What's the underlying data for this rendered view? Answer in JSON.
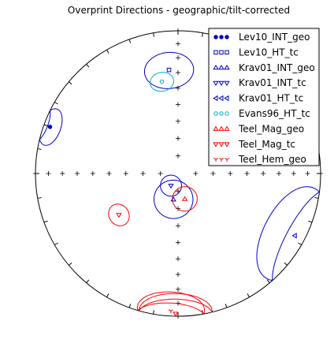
{
  "chart_data": {
    "type": "scatter",
    "projection": "equal-area stereonet",
    "title": "Overprint Directions - geographic/tilt-corrected",
    "legend_position": "top-right",
    "grid": false,
    "series": [
      {
        "name": "Lev10_INT_geo",
        "marker": "circle",
        "color": "#0000cc",
        "filled": true,
        "points": [
          {
            "dec": 290,
            "inc": 5,
            "a95": 8
          }
        ]
      },
      {
        "name": "Lev10_HT_tc",
        "marker": "square",
        "color": "#0000cc",
        "filled": false,
        "points": [
          {
            "dec": 355,
            "inc": 28,
            "a95": 12
          }
        ]
      },
      {
        "name": "Krav01_INT_geo",
        "marker": "triangle-up",
        "color": "#0000cc",
        "filled": false,
        "points": [
          {
            "dec": 190,
            "inc": 75,
            "a95": 11
          }
        ]
      },
      {
        "name": "Krav01_INT_tc",
        "marker": "triangle-down",
        "color": "#0000cc",
        "filled": false,
        "points": [
          {
            "dec": 210,
            "inc": 82,
            "a95": 6
          }
        ]
      },
      {
        "name": "Krav01_HT_tc",
        "marker": "triangle-left",
        "color": "#0000cc",
        "filled": false,
        "points": [
          {
            "dec": 118,
            "inc": 8,
            "a95": 22
          }
        ]
      },
      {
        "name": "Evans96_HT_tc",
        "marker": "circle",
        "color": "#00b0c0",
        "filled": false,
        "points": [
          {
            "dec": 350,
            "inc": 35,
            "a95": 6
          }
        ]
      },
      {
        "name": "Teel_Mag_geo",
        "marker": "triangle-up",
        "color": "#ff0000",
        "filled": false,
        "points": [
          {
            "dec": 165,
            "inc": 75,
            "a95": 7
          }
        ]
      },
      {
        "name": "Teel_Mag_tc",
        "marker": "triangle-down",
        "color": "#ff0000",
        "filled": false,
        "points": [
          {
            "dec": 235,
            "inc": 48,
            "a95": 6
          },
          {
            "dec": 181,
            "inc": 2,
            "a95": 15
          }
        ]
      },
      {
        "name": "Teel_Hem_geo",
        "marker": "tri-down",
        "color": "#ff0000",
        "filled": false,
        "points": [
          {
            "dec": 183,
            "inc": 4,
            "a95": 14
          }
        ]
      }
    ]
  }
}
